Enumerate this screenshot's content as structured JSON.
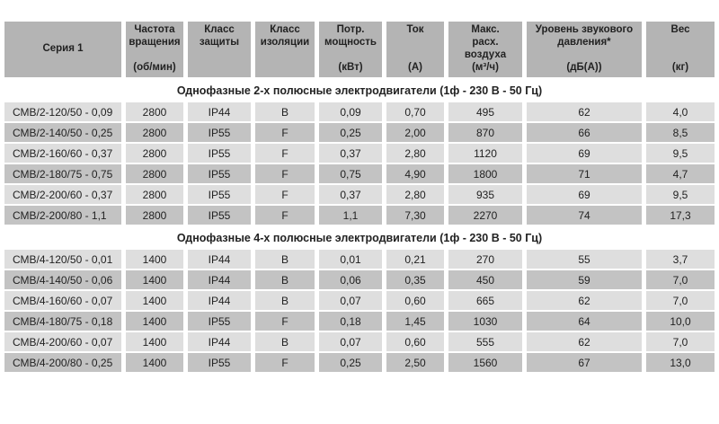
{
  "colors": {
    "header_bg": "#b4b4b4",
    "row_light": "#dedede",
    "row_dark": "#c3c3c3",
    "text": "#222222",
    "page_bg": "#ffffff"
  },
  "table": {
    "header": {
      "series": "Серия 1",
      "columns": [
        {
          "label": "Частота\nвращения",
          "unit": "(об/мин)"
        },
        {
          "label": "Класс\nзащиты",
          "unit": ""
        },
        {
          "label": "Класс\nизоляции",
          "unit": ""
        },
        {
          "label": "Потр.\nмощность",
          "unit": "(кВт)"
        },
        {
          "label": "Ток",
          "unit": "(А)"
        },
        {
          "label": "Макс.\nрасх.\nвоздуха",
          "unit": "(м³/ч)"
        },
        {
          "label": "Уровень звукового\nдавления*",
          "unit": "(дБ(А))"
        },
        {
          "label": "Вес",
          "unit": "(кг)"
        }
      ]
    },
    "sections": [
      {
        "title": "Однофазные 2-х полюсные электродвигатели (1ф - 230 В - 50 Гц)",
        "rows": [
          [
            "СМВ/2-120/50 - 0,09",
            "2800",
            "IP44",
            "B",
            "0,09",
            "0,70",
            "495",
            "62",
            "4,0"
          ],
          [
            "СМВ/2-140/50 - 0,25",
            "2800",
            "IP55",
            "F",
            "0,25",
            "2,00",
            "870",
            "66",
            "8,5"
          ],
          [
            "СМВ/2-160/60 - 0,37",
            "2800",
            "IP55",
            "F",
            "0,37",
            "2,80",
            "1120",
            "69",
            "9,5"
          ],
          [
            "СМВ/2-180/75 - 0,75",
            "2800",
            "IP55",
            "F",
            "0,75",
            "4,90",
            "1800",
            "71",
            "4,7"
          ],
          [
            "СМВ/2-200/60 - 0,37",
            "2800",
            "IP55",
            "F",
            "0,37",
            "2,80",
            "935",
            "69",
            "9,5"
          ],
          [
            "СМВ/2-200/80 - 1,1",
            "2800",
            "IP55",
            "F",
            "1,1",
            "7,30",
            "2270",
            "74",
            "17,3"
          ]
        ]
      },
      {
        "title": "Однофазные 4-х полюсные электродвигатели (1ф - 230 В - 50 Гц)",
        "rows": [
          [
            "СМВ/4-120/50 - 0,01",
            "1400",
            "IP44",
            "B",
            "0,01",
            "0,21",
            "270",
            "55",
            "3,7"
          ],
          [
            "СМВ/4-140/50 - 0,06",
            "1400",
            "IP44",
            "B",
            "0,06",
            "0,35",
            "450",
            "59",
            "7,0"
          ],
          [
            "СМВ/4-160/60 - 0,07",
            "1400",
            "IP44",
            "B",
            "0,07",
            "0,60",
            "665",
            "62",
            "7,0"
          ],
          [
            "СМВ/4-180/75 - 0,18",
            "1400",
            "IP55",
            "F",
            "0,18",
            "1,45",
            "1030",
            "64",
            "10,0"
          ],
          [
            "СМВ/4-200/60 - 0,07",
            "1400",
            "IP44",
            "B",
            "0,07",
            "0,60",
            "555",
            "62",
            "7,0"
          ],
          [
            "СМВ/4-200/80 - 0,25",
            "1400",
            "IP55",
            "F",
            "0,25",
            "2,50",
            "1560",
            "67",
            "13,0"
          ]
        ]
      }
    ]
  }
}
